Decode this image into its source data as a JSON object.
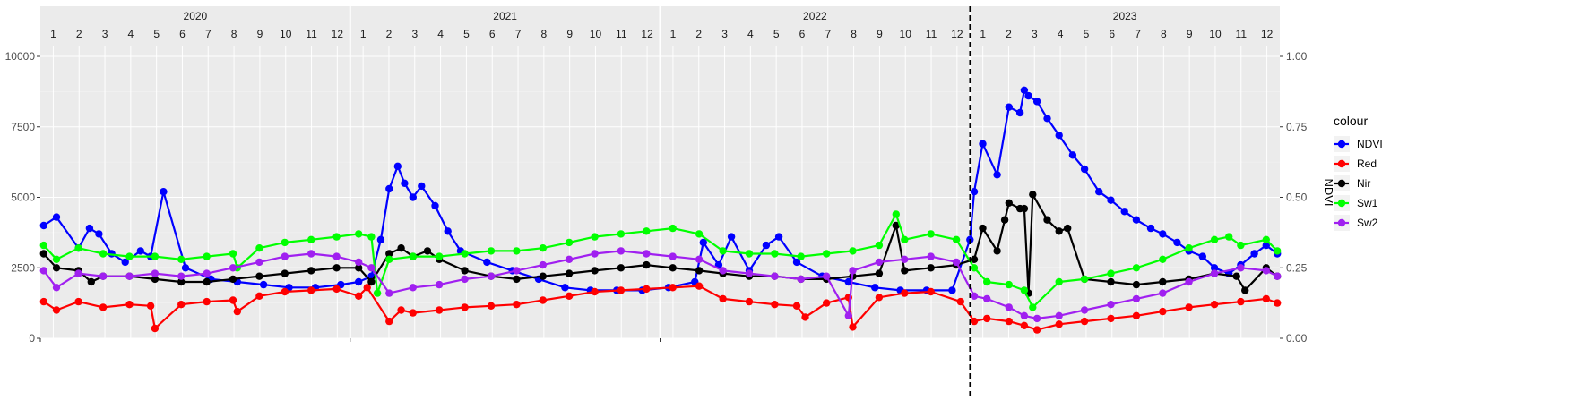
{
  "chart_data": {
    "type": "line",
    "xlim": [
      "2020-01-01",
      "2023-12-31"
    ],
    "y_left": {
      "ylim": [
        0,
        10000
      ],
      "ticks": [
        0,
        2500,
        5000,
        7500,
        10000
      ],
      "tick_labels": [
        "0",
        "2500",
        "5000",
        "7500",
        "10000"
      ]
    },
    "y_right": {
      "label": "NDVI",
      "ylim": [
        0,
        1
      ],
      "ticks": [
        0,
        0.25,
        0.5,
        0.75,
        1
      ],
      "tick_labels": [
        "0.00",
        "0.25",
        "0.50",
        "0.75",
        "1.00"
      ]
    },
    "facet_labels": [
      "2020",
      "2021",
      "2022",
      "2023"
    ],
    "month_labels": [
      "1",
      "2",
      "3",
      "4",
      "5",
      "6",
      "7",
      "8",
      "9",
      "10",
      "11",
      "12"
    ],
    "vline_date": "2022-12-31",
    "grid": true,
    "legend": {
      "title": "colour",
      "position": "right"
    },
    "series": [
      {
        "name": "NDVI",
        "axis": "right",
        "color": "#0000ff",
        "x": [
          "2020-01-05",
          "2020-01-20",
          "2020-02-15",
          "2020-02-28",
          "2020-03-10",
          "2020-03-25",
          "2020-04-10",
          "2020-04-28",
          "2020-05-10",
          "2020-05-25",
          "2020-06-20",
          "2020-07-20",
          "2020-08-20",
          "2020-09-20",
          "2020-10-20",
          "2020-11-20",
          "2020-12-20",
          "2021-01-10",
          "2021-01-25",
          "2021-02-05",
          "2021-02-15",
          "2021-02-25",
          "2021-03-05",
          "2021-03-15",
          "2021-03-25",
          "2021-04-10",
          "2021-04-25",
          "2021-05-10",
          "2021-06-10",
          "2021-07-10",
          "2021-08-10",
          "2021-09-10",
          "2021-10-10",
          "2021-11-10",
          "2021-12-10",
          "2022-01-10",
          "2022-02-10",
          "2022-02-20",
          "2022-03-10",
          "2022-03-25",
          "2022-04-15",
          "2022-05-05",
          "2022-05-20",
          "2022-06-10",
          "2022-07-10",
          "2022-08-10",
          "2022-09-10",
          "2022-10-10",
          "2022-11-10",
          "2022-12-10",
          "2022-12-31",
          "2023-01-05",
          "2023-01-15",
          "2023-02-01",
          "2023-02-15",
          "2023-02-28",
          "2023-03-05",
          "2023-03-10",
          "2023-03-20",
          "2023-04-01",
          "2023-04-15",
          "2023-05-01",
          "2023-05-15",
          "2023-06-01",
          "2023-06-15",
          "2023-07-01",
          "2023-07-15",
          "2023-08-01",
          "2023-08-15",
          "2023-09-01",
          "2023-09-15",
          "2023-10-01",
          "2023-10-15",
          "2023-11-01",
          "2023-11-15",
          "2023-12-01",
          "2023-12-15",
          "2023-12-28"
        ],
        "values": [
          0.4,
          0.43,
          0.32,
          0.39,
          0.37,
          0.3,
          0.27,
          0.31,
          0.29,
          0.52,
          0.25,
          0.21,
          0.2,
          0.19,
          0.18,
          0.18,
          0.19,
          0.2,
          0.22,
          0.35,
          0.53,
          0.61,
          0.55,
          0.5,
          0.54,
          0.47,
          0.38,
          0.31,
          0.27,
          0.24,
          0.21,
          0.18,
          0.17,
          0.17,
          0.17,
          0.18,
          0.2,
          0.34,
          0.26,
          0.36,
          0.24,
          0.33,
          0.36,
          0.27,
          0.22,
          0.2,
          0.18,
          0.17,
          0.17,
          0.17,
          0.35,
          0.52,
          0.69,
          0.58,
          0.82,
          0.8,
          0.88,
          0.86,
          0.84,
          0.78,
          0.72,
          0.65,
          0.6,
          0.52,
          0.49,
          0.45,
          0.42,
          0.39,
          0.37,
          0.34,
          0.31,
          0.29,
          0.25,
          0.23,
          0.26,
          0.3,
          0.33,
          0.3
        ]
      },
      {
        "name": "Red",
        "axis": "left",
        "color": "#ff0000",
        "x": [
          "2020-01-05",
          "2020-01-20",
          "2020-02-15",
          "2020-03-15",
          "2020-04-15",
          "2020-05-10",
          "2020-05-15",
          "2020-06-15",
          "2020-07-15",
          "2020-08-15",
          "2020-08-20",
          "2020-09-15",
          "2020-10-15",
          "2020-11-15",
          "2020-12-15",
          "2021-01-10",
          "2021-01-20",
          "2021-02-15",
          "2021-03-01",
          "2021-03-15",
          "2021-04-15",
          "2021-05-15",
          "2021-06-15",
          "2021-07-15",
          "2021-08-15",
          "2021-09-15",
          "2021-10-15",
          "2021-11-15",
          "2021-12-15",
          "2022-01-15",
          "2022-02-15",
          "2022-03-15",
          "2022-04-15",
          "2022-05-15",
          "2022-06-10",
          "2022-06-20",
          "2022-07-15",
          "2022-08-10",
          "2022-08-15",
          "2022-09-15",
          "2022-10-15",
          "2022-11-15",
          "2022-12-20",
          "2023-01-05",
          "2023-01-20",
          "2023-02-15",
          "2023-03-05",
          "2023-03-20",
          "2023-04-15",
          "2023-05-15",
          "2023-06-15",
          "2023-07-15",
          "2023-08-15",
          "2023-09-15",
          "2023-10-15",
          "2023-11-15",
          "2023-12-15",
          "2023-12-28"
        ],
        "values": [
          1300,
          1000,
          1300,
          1100,
          1200,
          1150,
          350,
          1200,
          1300,
          1350,
          950,
          1500,
          1650,
          1700,
          1750,
          1500,
          1800,
          600,
          1000,
          900,
          1000,
          1100,
          1150,
          1200,
          1350,
          1500,
          1650,
          1700,
          1750,
          1800,
          1850,
          1400,
          1300,
          1200,
          1150,
          750,
          1250,
          1450,
          400,
          1450,
          1600,
          1650,
          1300,
          600,
          700,
          600,
          450,
          300,
          500,
          600,
          700,
          800,
          950,
          1100,
          1200,
          1300,
          1400,
          1250
        ]
      },
      {
        "name": "Nir",
        "axis": "left",
        "color": "#000000",
        "x": [
          "2020-01-05",
          "2020-01-20",
          "2020-02-15",
          "2020-03-01",
          "2020-03-15",
          "2020-04-15",
          "2020-05-15",
          "2020-06-15",
          "2020-07-15",
          "2020-08-15",
          "2020-09-15",
          "2020-10-15",
          "2020-11-15",
          "2020-12-15",
          "2021-01-10",
          "2021-01-25",
          "2021-02-15",
          "2021-03-01",
          "2021-03-15",
          "2021-04-01",
          "2021-04-15",
          "2021-05-15",
          "2021-06-15",
          "2021-07-15",
          "2021-08-15",
          "2021-09-15",
          "2021-10-15",
          "2021-11-15",
          "2021-12-15",
          "2022-01-15",
          "2022-02-15",
          "2022-03-15",
          "2022-04-15",
          "2022-05-15",
          "2022-06-15",
          "2022-07-15",
          "2022-08-15",
          "2022-09-15",
          "2022-10-05",
          "2022-10-15",
          "2022-11-15",
          "2022-12-15",
          "2023-01-05",
          "2023-01-15",
          "2023-02-01",
          "2023-02-10",
          "2023-02-15",
          "2023-02-28",
          "2023-03-05",
          "2023-03-10",
          "2023-03-15",
          "2023-04-01",
          "2023-04-15",
          "2023-04-25",
          "2023-05-15",
          "2023-06-15",
          "2023-07-15",
          "2023-08-15",
          "2023-09-15",
          "2023-10-15",
          "2023-11-10",
          "2023-11-20",
          "2023-12-15",
          "2023-12-28"
        ],
        "values": [
          3000,
          2500,
          2400,
          2000,
          2200,
          2200,
          2100,
          2000,
          2000,
          2100,
          2200,
          2300,
          2400,
          2500,
          2500,
          2000,
          3000,
          3200,
          2900,
          3100,
          2800,
          2400,
          2200,
          2100,
          2200,
          2300,
          2400,
          2500,
          2600,
          2500,
          2400,
          2300,
          2200,
          2200,
          2100,
          2100,
          2200,
          2300,
          4000,
          2400,
          2500,
          2600,
          2800,
          3900,
          3100,
          4200,
          4800,
          4600,
          4600,
          1600,
          5100,
          4200,
          3800,
          3900,
          2100,
          2000,
          1900,
          2000,
          2100,
          2300,
          2200,
          1700,
          2500,
          2200
        ]
      },
      {
        "name": "Sw1",
        "axis": "left",
        "color": "#00ff00",
        "x": [
          "2020-01-05",
          "2020-01-20",
          "2020-02-15",
          "2020-03-15",
          "2020-04-15",
          "2020-05-15",
          "2020-06-15",
          "2020-07-15",
          "2020-08-15",
          "2020-08-20",
          "2020-09-15",
          "2020-10-15",
          "2020-11-15",
          "2020-12-15",
          "2021-01-10",
          "2021-01-25",
          "2021-02-01",
          "2021-02-15",
          "2021-03-15",
          "2021-04-15",
          "2021-05-15",
          "2021-06-15",
          "2021-07-15",
          "2021-08-15",
          "2021-09-15",
          "2021-10-15",
          "2021-11-15",
          "2021-12-15",
          "2022-01-15",
          "2022-02-15",
          "2022-03-15",
          "2022-04-15",
          "2022-05-15",
          "2022-06-15",
          "2022-07-15",
          "2022-08-15",
          "2022-09-15",
          "2022-10-05",
          "2022-10-15",
          "2022-11-15",
          "2022-12-15",
          "2023-01-05",
          "2023-01-20",
          "2023-02-15",
          "2023-03-05",
          "2023-03-15",
          "2023-04-15",
          "2023-05-15",
          "2023-06-15",
          "2023-07-15",
          "2023-08-15",
          "2023-09-15",
          "2023-10-15",
          "2023-11-01",
          "2023-11-15",
          "2023-12-15",
          "2023-12-28"
        ],
        "values": [
          3300,
          2800,
          3200,
          3000,
          2900,
          2900,
          2800,
          2900,
          3000,
          2500,
          3200,
          3400,
          3500,
          3600,
          3700,
          3600,
          1600,
          2800,
          2900,
          2900,
          3000,
          3100,
          3100,
          3200,
          3400,
          3600,
          3700,
          3800,
          3900,
          3700,
          3100,
          3000,
          3000,
          2900,
          3000,
          3100,
          3300,
          4400,
          3500,
          3700,
          3500,
          2500,
          2000,
          1900,
          1700,
          1100,
          2000,
          2100,
          2300,
          2500,
          2800,
          3200,
          3500,
          3600,
          3300,
          3500,
          3100
        ]
      },
      {
        "name": "Sw2",
        "axis": "left",
        "color": "#a020f0",
        "x": [
          "2020-01-05",
          "2020-01-20",
          "2020-02-15",
          "2020-03-15",
          "2020-04-15",
          "2020-05-15",
          "2020-06-15",
          "2020-07-15",
          "2020-08-15",
          "2020-09-15",
          "2020-10-15",
          "2020-11-15",
          "2020-12-15",
          "2021-01-10",
          "2021-01-25",
          "2021-02-15",
          "2021-03-15",
          "2021-04-15",
          "2021-05-15",
          "2021-06-15",
          "2021-07-15",
          "2021-08-15",
          "2021-09-15",
          "2021-10-15",
          "2021-11-15",
          "2021-12-15",
          "2022-01-15",
          "2022-02-15",
          "2022-03-15",
          "2022-04-15",
          "2022-05-15",
          "2022-06-15",
          "2022-07-15",
          "2022-08-10",
          "2022-08-15",
          "2022-09-15",
          "2022-10-15",
          "2022-11-15",
          "2022-12-15",
          "2023-01-05",
          "2023-01-20",
          "2023-02-15",
          "2023-03-05",
          "2023-03-20",
          "2023-04-15",
          "2023-05-15",
          "2023-06-15",
          "2023-07-15",
          "2023-08-15",
          "2023-09-15",
          "2023-10-15",
          "2023-11-15",
          "2023-12-15",
          "2023-12-28"
        ],
        "values": [
          2400,
          1800,
          2300,
          2200,
          2200,
          2300,
          2200,
          2300,
          2500,
          2700,
          2900,
          3000,
          2900,
          2700,
          2500,
          1600,
          1800,
          1900,
          2100,
          2200,
          2400,
          2600,
          2800,
          3000,
          3100,
          3000,
          2900,
          2800,
          2400,
          2300,
          2200,
          2100,
          2200,
          800,
          2400,
          2700,
          2800,
          2900,
          2700,
          1500,
          1400,
          1100,
          800,
          700,
          800,
          1000,
          1200,
          1400,
          1600,
          2000,
          2300,
          2500,
          2400,
          2200
        ]
      }
    ]
  }
}
